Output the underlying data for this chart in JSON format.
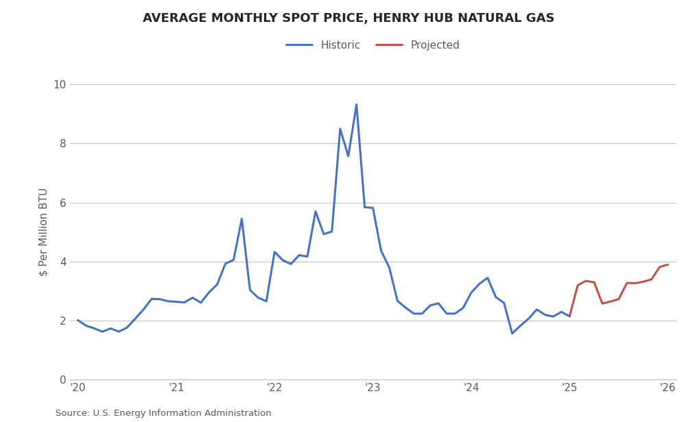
{
  "title": "AVERAGE MONTHLY SPOT PRICE, HENRY HUB NATURAL GAS",
  "ylabel": "$ Per Million BTU",
  "source": "Source: U.S. Energy Information Administration",
  "historic_color": "#4472C4",
  "projected_color": "#C0504D",
  "line_width": 2.2,
  "ylim": [
    0,
    10
  ],
  "yticks": [
    0,
    2,
    4,
    6,
    8,
    10
  ],
  "xtick_labels": [
    "'20",
    "'21",
    "'22",
    "'23",
    "'24",
    "'25",
    "'26"
  ],
  "xtick_positions": [
    0,
    12,
    24,
    36,
    48,
    60,
    72
  ],
  "legend_labels": [
    "Historic",
    "Projected"
  ],
  "historic_x": [
    0,
    1,
    2,
    3,
    4,
    5,
    6,
    7,
    8,
    9,
    10,
    11,
    12,
    13,
    14,
    15,
    16,
    17,
    18,
    19,
    20,
    21,
    22,
    23,
    24,
    25,
    26,
    27,
    28,
    29,
    30,
    31,
    32,
    33,
    34,
    35,
    36,
    37,
    38,
    39,
    40,
    41,
    42,
    43,
    44,
    45,
    46,
    47,
    48,
    49,
    50,
    51,
    52,
    53,
    54,
    55,
    56,
    57,
    58,
    59,
    60
  ],
  "historic_y": [
    2.02,
    1.83,
    1.74,
    1.63,
    1.74,
    1.63,
    1.77,
    2.07,
    2.38,
    2.74,
    2.73,
    2.66,
    2.64,
    2.62,
    2.78,
    2.61,
    2.96,
    3.23,
    3.93,
    4.06,
    5.45,
    3.04,
    2.78,
    2.66,
    4.33,
    4.05,
    3.92,
    4.22,
    4.17,
    5.7,
    4.93,
    5.02,
    8.5,
    7.57,
    9.32,
    5.84,
    5.82,
    4.37,
    3.8,
    2.67,
    2.44,
    2.24,
    2.24,
    2.52,
    2.59,
    2.24,
    2.24,
    2.43,
    2.95,
    3.25,
    3.45,
    2.8,
    2.6,
    1.57,
    1.83,
    2.07,
    2.38,
    2.2,
    2.14,
    2.3,
    2.15
  ],
  "projected_x": [
    60,
    61,
    62,
    63,
    64,
    65,
    66,
    67,
    68,
    69,
    70,
    71,
    72
  ],
  "projected_y": [
    2.15,
    3.2,
    3.35,
    3.3,
    2.58,
    2.65,
    2.73,
    3.28,
    3.27,
    3.32,
    3.4,
    3.82,
    3.9
  ],
  "xlim": [
    -1,
    73
  ]
}
